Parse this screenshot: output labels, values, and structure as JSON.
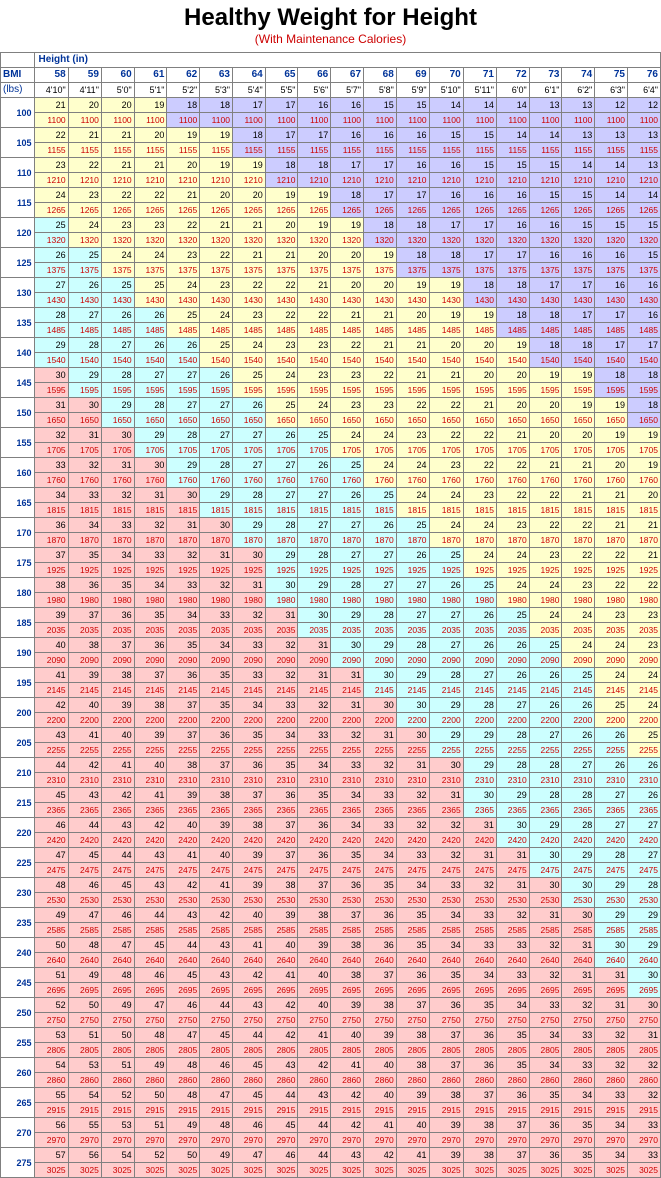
{
  "title": "Healthy Weight for Height",
  "subtitle": "(With Maintenance Calories)",
  "labels": {
    "heightUnits": "Height (in)",
    "bmi": "BMI",
    "lbs": "(lbs)"
  },
  "colors": {
    "underweight": "#ccccff",
    "normal": "#ffffcc",
    "overweight": "#ccffff",
    "obese": "#ffcccc",
    "border": "#808080",
    "headerText": "#003399",
    "calText": "#cc0000"
  },
  "calorieFactor": 11,
  "heightsIn": [
    58,
    59,
    60,
    61,
    62,
    63,
    64,
    65,
    66,
    67,
    68,
    69,
    70,
    71,
    72,
    73,
    74,
    75,
    76
  ],
  "heightsFtIn": [
    "4'10\"",
    "4'11\"",
    "5'0\"",
    "5'1\"",
    "5'2\"",
    "5'3\"",
    "5'4\"",
    "5'5\"",
    "5'6\"",
    "5'7\"",
    "5'8\"",
    "5'9\"",
    "5'10\"",
    "5'11\"",
    "6'0\"",
    "6'1\"",
    "6'2\"",
    "6'3\"",
    "6'4\""
  ],
  "weights": [
    100,
    105,
    110,
    115,
    120,
    125,
    130,
    135,
    140,
    145,
    150,
    155,
    160,
    165,
    170,
    175,
    180,
    185,
    190,
    195,
    200,
    205,
    210,
    215,
    220,
    225,
    230,
    235,
    240,
    245,
    250,
    255,
    260,
    265,
    270,
    275
  ],
  "bmiThresholds": {
    "underweightMax": 18.5,
    "normalMax": 25,
    "overweightMax": 30
  }
}
